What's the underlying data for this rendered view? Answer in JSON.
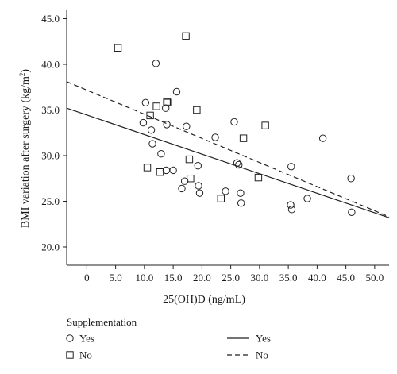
{
  "chart_data": {
    "type": "scatter",
    "xlabel": "25(OH)D (ng/mL)",
    "ylabel_main": "BMI variation after surgery (kg/m",
    "ylabel_sup": "2",
    "ylabel_end": ")",
    "xlim": [
      -3.5,
      52.5
    ],
    "ylim": [
      18.0,
      46.0
    ],
    "x_ticks": [
      0,
      5,
      10,
      15,
      20,
      25,
      30,
      35,
      40,
      45,
      50
    ],
    "x_tick_labels": [
      "0",
      "5.0",
      "10.0",
      "15.0",
      "20.0",
      "25.0",
      "30.0",
      "35.0",
      "40.0",
      "45.0",
      "50.0"
    ],
    "y_ticks": [
      20,
      25,
      30,
      35,
      40,
      45
    ],
    "y_tick_labels": [
      "20.0",
      "25.0",
      "30.0",
      "35.0",
      "40.0",
      "45.0"
    ],
    "legend_title": "Supplementation",
    "legend": [
      {
        "label": "Yes",
        "kind": "marker",
        "marker": "circle"
      },
      {
        "label": "No",
        "kind": "marker",
        "marker": "square"
      },
      {
        "label": "Yes",
        "kind": "line",
        "dash": "solid"
      },
      {
        "label": "No",
        "kind": "line",
        "dash": "dashed"
      }
    ],
    "series": [
      {
        "name": "Yes",
        "marker": "circle",
        "points": [
          [
            12.0,
            40.1
          ],
          [
            10.2,
            35.8
          ],
          [
            9.8,
            33.6
          ],
          [
            11.2,
            32.8
          ],
          [
            11.4,
            31.3
          ],
          [
            12.9,
            30.2
          ],
          [
            13.7,
            35.2
          ],
          [
            13.9,
            33.4
          ],
          [
            15.6,
            37.0
          ],
          [
            17.3,
            33.2
          ],
          [
            13.8,
            28.4
          ],
          [
            15.0,
            28.4
          ],
          [
            16.5,
            26.4
          ],
          [
            17.0,
            27.2
          ],
          [
            19.3,
            28.9
          ],
          [
            19.4,
            26.7
          ],
          [
            19.6,
            25.9
          ],
          [
            22.3,
            32.0
          ],
          [
            24.1,
            26.1
          ],
          [
            25.6,
            33.7
          ],
          [
            26.1,
            29.2
          ],
          [
            26.4,
            29.0
          ],
          [
            26.7,
            25.9
          ],
          [
            26.8,
            24.8
          ],
          [
            35.5,
            28.8
          ],
          [
            35.4,
            24.6
          ],
          [
            35.6,
            24.1
          ],
          [
            38.3,
            25.3
          ],
          [
            41.0,
            31.9
          ],
          [
            45.9,
            27.5
          ],
          [
            46.0,
            23.8
          ]
        ]
      },
      {
        "name": "No",
        "marker": "square",
        "points": [
          [
            5.4,
            41.8
          ],
          [
            17.2,
            43.1
          ],
          [
            10.5,
            28.7
          ],
          [
            11.0,
            34.4
          ],
          [
            12.1,
            35.4
          ],
          [
            12.7,
            28.2
          ],
          [
            13.9,
            35.9
          ],
          [
            14.0,
            35.8
          ],
          [
            17.8,
            29.6
          ],
          [
            18.0,
            27.5
          ],
          [
            19.1,
            35.0
          ],
          [
            23.3,
            25.3
          ],
          [
            27.2,
            31.9
          ],
          [
            29.8,
            27.6
          ],
          [
            31.0,
            33.3
          ]
        ]
      }
    ],
    "fit_lines": [
      {
        "name": "Yes",
        "dash": "solid",
        "points": [
          [
            -3.5,
            35.2
          ],
          [
            52.5,
            23.2
          ]
        ]
      },
      {
        "name": "No",
        "dash": "dashed",
        "points": [
          [
            -3.5,
            38.1
          ],
          [
            52.5,
            23.3
          ]
        ]
      }
    ],
    "grid": false,
    "legend_position": "bottom"
  }
}
